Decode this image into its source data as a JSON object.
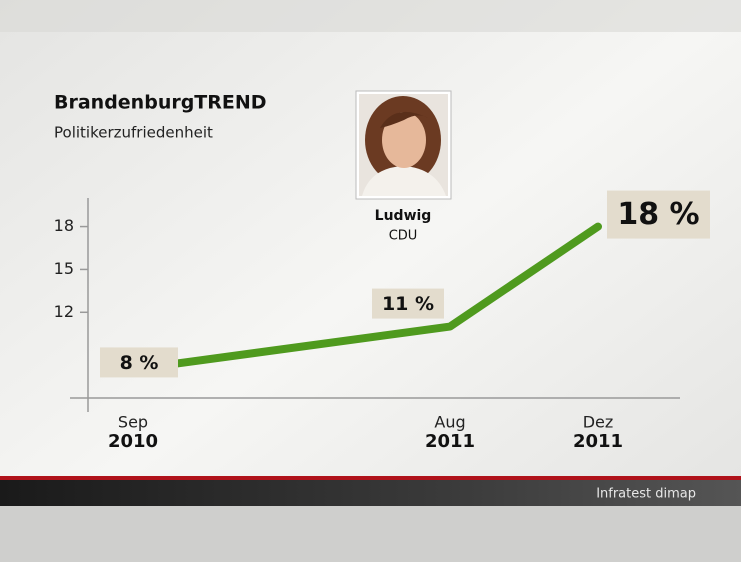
{
  "chart_data": {
    "type": "line",
    "title": "BrandenburgTREND",
    "subtitle": "Politikerzufriedenheit",
    "person": {
      "name": "Ludwig",
      "party": "CDU"
    },
    "source": "Infratest dimap",
    "categories": [
      {
        "month": "Sep",
        "year": "2010"
      },
      {
        "month": "Aug",
        "year": "2011"
      },
      {
        "month": "Dez",
        "year": "2011"
      }
    ],
    "values": [
      8,
      11,
      18
    ],
    "value_labels": [
      "8 %",
      "11 %",
      "18 %"
    ],
    "color": "#4f9a1e",
    "ylim": [
      6,
      20
    ],
    "yticks": [
      12,
      15,
      18
    ]
  }
}
